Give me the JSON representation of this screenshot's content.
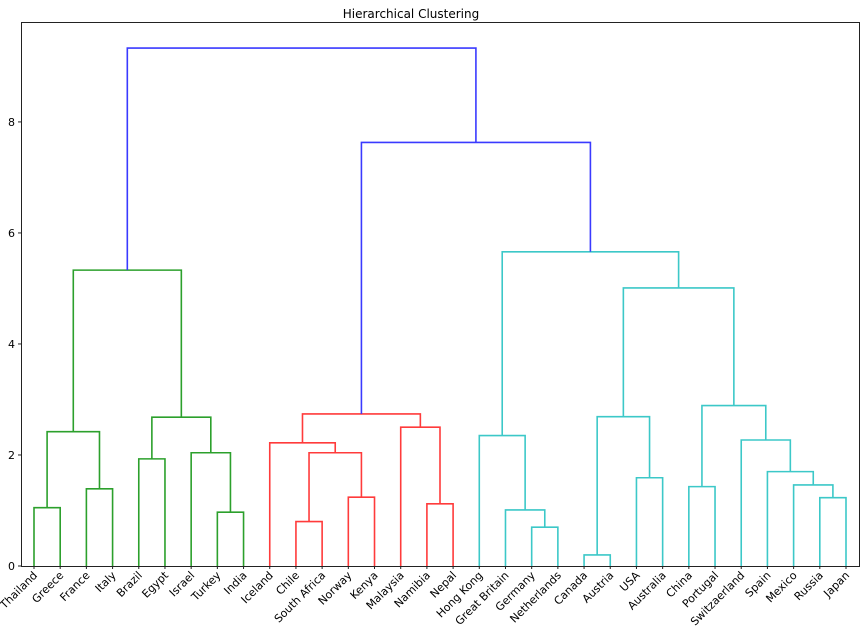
{
  "chart_data": {
    "type": "dendrogram",
    "title": "Hierarchical Clustering",
    "xlabel": "",
    "ylabel": "",
    "ylim": [
      0,
      9.8
    ],
    "yticks": [
      0,
      2,
      4,
      6,
      8
    ],
    "grid": false,
    "leaves": [
      "Thailand",
      "Greece",
      "France",
      "Italy",
      "Brazil",
      "Egypt",
      "Israel",
      "Turkey",
      "India",
      "Iceland",
      "Chile",
      "South Africa",
      "Norway",
      "Kenya",
      "Malaysia",
      "Namibia",
      "Nepal",
      "Hong Kong",
      "Great Britain",
      "Germany",
      "Netherlands",
      "Canada",
      "Austria",
      "USA",
      "Australia",
      "China",
      "Portugal",
      "Switzaerland",
      "Spain",
      "Mexico",
      "Russia",
      "Japan"
    ],
    "colors": {
      "green": "#2ca02c",
      "red": "#ff3b3b",
      "cyan": "#3cc8c8",
      "blue": "#3a3aff"
    },
    "links": [
      {
        "left": "Thailand",
        "right": "Greece",
        "height": 1.05,
        "color": "green"
      },
      {
        "left": "France",
        "right": "Italy",
        "height": 1.39,
        "color": "green"
      },
      {
        "left": "L0",
        "right": "L1",
        "height": 2.42,
        "color": "green"
      },
      {
        "left": "Brazil",
        "right": "Egypt",
        "height": 1.93,
        "color": "green"
      },
      {
        "left": "Turkey",
        "right": "India",
        "height": 0.97,
        "color": "green"
      },
      {
        "left": "Israel",
        "right": "L4",
        "height": 2.04,
        "color": "green"
      },
      {
        "left": "L3",
        "right": "L5",
        "height": 2.68,
        "color": "green"
      },
      {
        "left": "L2",
        "right": "L6",
        "height": 5.33,
        "color": "green"
      },
      {
        "left": "Chile",
        "right": "South Africa",
        "height": 0.8,
        "color": "red"
      },
      {
        "left": "Norway",
        "right": "Kenya",
        "height": 1.24,
        "color": "red"
      },
      {
        "left": "L8",
        "right": "L9",
        "height": 2.04,
        "color": "red"
      },
      {
        "left": "Iceland",
        "right": "L10",
        "height": 2.22,
        "color": "red"
      },
      {
        "left": "Namibia",
        "right": "Nepal",
        "height": 1.12,
        "color": "red"
      },
      {
        "left": "Malaysia",
        "right": "L12",
        "height": 2.5,
        "color": "red"
      },
      {
        "left": "L11",
        "right": "L13",
        "height": 2.74,
        "color": "red"
      },
      {
        "left": "Germany",
        "right": "Netherlands",
        "height": 0.7,
        "color": "cyan"
      },
      {
        "left": "Great Britain",
        "right": "L15",
        "height": 1.01,
        "color": "cyan"
      },
      {
        "left": "Hong Kong",
        "right": "L16",
        "height": 2.35,
        "color": "cyan"
      },
      {
        "left": "Canada",
        "right": "Austria",
        "height": 0.2,
        "color": "cyan"
      },
      {
        "left": "USA",
        "right": "Australia",
        "height": 1.59,
        "color": "cyan"
      },
      {
        "left": "L18",
        "right": "L19",
        "height": 2.69,
        "color": "cyan"
      },
      {
        "left": "China",
        "right": "Portugal",
        "height": 1.43,
        "color": "cyan"
      },
      {
        "left": "Russia",
        "right": "Japan",
        "height": 1.23,
        "color": "cyan"
      },
      {
        "left": "Mexico",
        "right": "L22",
        "height": 1.46,
        "color": "cyan"
      },
      {
        "left": "Spain",
        "right": "L23",
        "height": 1.7,
        "color": "cyan"
      },
      {
        "left": "Switzaerland",
        "right": "L24",
        "height": 2.27,
        "color": "cyan"
      },
      {
        "left": "L21",
        "right": "L25",
        "height": 2.89,
        "color": "cyan"
      },
      {
        "left": "L20",
        "right": "L26",
        "height": 5.01,
        "color": "cyan"
      },
      {
        "left": "L17",
        "right": "L27",
        "height": 5.66,
        "color": "cyan"
      },
      {
        "left": "L14",
        "right": "L28",
        "height": 7.63,
        "color": "blue"
      },
      {
        "left": "L7",
        "right": "L29",
        "height": 9.33,
        "color": "blue"
      }
    ]
  }
}
